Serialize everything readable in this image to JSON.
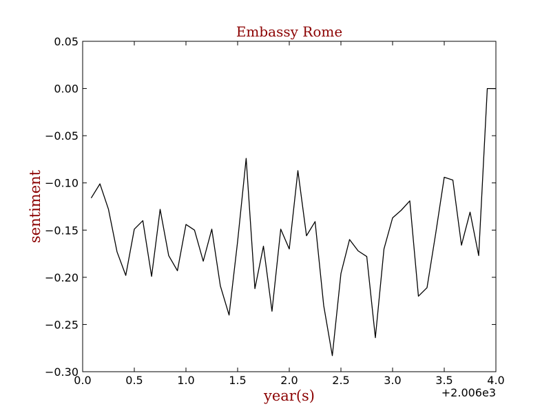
{
  "chart_data": {
    "type": "line",
    "title": "Embassy Rome",
    "xlabel": "year(s)",
    "ylabel": "sentiment",
    "x_offset_label": "+2.006e3",
    "xlim": [
      0.0,
      4.0
    ],
    "ylim": [
      -0.3,
      0.05
    ],
    "x_ticks": [
      "0.0",
      "0.5",
      "1.0",
      "1.5",
      "2.0",
      "2.5",
      "3.0",
      "3.5",
      "4.0"
    ],
    "y_ticks": [
      "0.05",
      "0.00",
      "−0.05",
      "−0.10",
      "−0.15",
      "−0.20",
      "−0.25",
      "−0.30"
    ],
    "grid": false,
    "colors": {
      "line": "#000000",
      "title": "#8b0000",
      "axis_label": "#8b0000"
    },
    "series": [
      {
        "x": [
          0.083,
          0.167,
          0.25,
          0.333,
          0.417,
          0.5,
          0.583,
          0.667,
          0.75,
          0.833,
          0.917,
          1.0,
          1.083,
          1.167,
          1.25,
          1.333,
          1.417,
          1.5,
          1.583,
          1.667,
          1.75,
          1.833,
          1.917,
          2.0,
          2.083,
          2.167,
          2.25,
          2.333,
          2.417,
          2.5,
          2.583,
          2.667,
          2.75,
          2.833,
          2.917,
          3.0,
          3.083,
          3.167,
          3.25,
          3.333,
          3.417,
          3.5,
          3.583,
          3.667,
          3.75,
          3.833,
          3.917,
          4.0
        ],
        "y": [
          -0.116,
          -0.101,
          -0.128,
          -0.173,
          -0.198,
          -0.149,
          -0.14,
          -0.199,
          -0.128,
          -0.177,
          -0.193,
          -0.144,
          -0.15,
          -0.183,
          -0.149,
          -0.209,
          -0.24,
          -0.162,
          -0.074,
          -0.212,
          -0.167,
          -0.236,
          -0.149,
          -0.17,
          -0.087,
          -0.156,
          -0.141,
          -0.23,
          -0.283,
          -0.196,
          -0.16,
          -0.172,
          -0.178,
          -0.264,
          -0.17,
          -0.137,
          -0.129,
          -0.119,
          -0.22,
          -0.211,
          -0.154,
          -0.094,
          -0.097,
          -0.166,
          -0.131,
          -0.177,
          0.0,
          0.0
        ]
      }
    ]
  }
}
